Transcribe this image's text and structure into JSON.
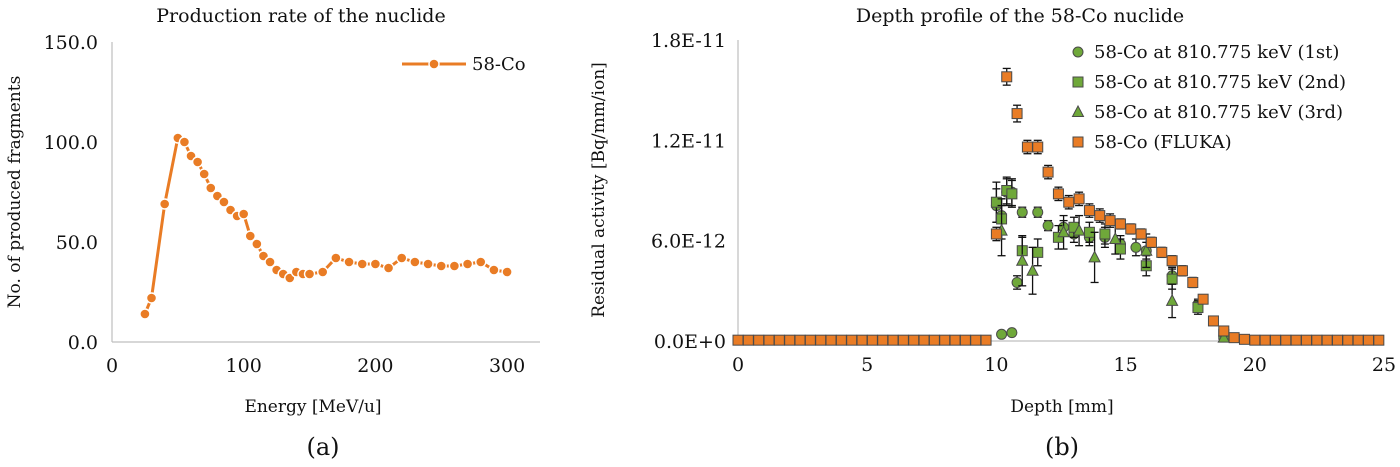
{
  "colors": {
    "orange": "#E97C25",
    "green": "#6FA83A",
    "dark": "#4a4a4a",
    "axis": "#bfbfbf"
  },
  "chart_data": [
    {
      "type": "line",
      "panel_label": "(a)",
      "title": "Production rate of the nuclide",
      "xlabel": "Energy [MeV/u]",
      "ylabel": "No. of produced fragments",
      "xlim": [
        0,
        325
      ],
      "ylim": [
        0,
        150
      ],
      "xticks": [
        "0",
        "100",
        "200",
        "300"
      ],
      "xtick_values": [
        0,
        100,
        200,
        300
      ],
      "yticks": [
        "0.0",
        "50.0",
        "100.0",
        "150.0"
      ],
      "ytick_values": [
        0,
        50,
        100,
        150
      ],
      "legend": "top-right",
      "series": [
        {
          "name": "58-Co",
          "color": "#E97C25",
          "x": [
            25,
            30,
            40,
            50,
            55,
            60,
            65,
            70,
            75,
            80,
            85,
            90,
            95,
            100,
            105,
            110,
            115,
            120,
            125,
            130,
            135,
            140,
            145,
            150,
            160,
            170,
            180,
            190,
            200,
            210,
            220,
            230,
            240,
            250,
            260,
            270,
            280,
            290,
            300
          ],
          "y": [
            14,
            22,
            69,
            102,
            100,
            93,
            90,
            84,
            77,
            73,
            70,
            66,
            63,
            64,
            53,
            49,
            43,
            40,
            36,
            34,
            32,
            35,
            34,
            34,
            35,
            42,
            40,
            39,
            39,
            37,
            42,
            40,
            39,
            38,
            38,
            39,
            40,
            36,
            35
          ]
        }
      ]
    },
    {
      "type": "scatter",
      "panel_label": "(b)",
      "title": "Depth profile of the 58-Co nuclide",
      "xlabel": "Depth [mm]",
      "ylabel": "Residual activity [Bq/mm/ion]",
      "xlim": [
        0,
        25
      ],
      "ylim": [
        0,
        1.8e-11
      ],
      "xticks": [
        "0",
        "5",
        "10",
        "15",
        "20",
        "25"
      ],
      "xtick_values": [
        0,
        5,
        10,
        15,
        20,
        25
      ],
      "yticks": [
        "0.0E+0",
        "6.0E-12",
        "1.2E-11",
        "1.8E-11"
      ],
      "ytick_values": [
        0,
        6e-12,
        1.2e-11,
        1.8e-11
      ],
      "legend": "top-right",
      "series": [
        {
          "name": "58-Co at 810.775 keV (1st)",
          "marker": "circle",
          "color": "#6FA83A",
          "points": [
            [
              10.0,
              8.1e-12,
              1e-12
            ],
            [
              10.2,
              7.5e-12,
              1e-12
            ],
            [
              10.4,
              8.9e-12,
              8e-13
            ],
            [
              10.6,
              8.9e-12,
              8e-13
            ],
            [
              10.8,
              3.5e-12,
              4e-13
            ],
            [
              11.0,
              7.7e-12,
              3e-13
            ],
            [
              11.6,
              7.7e-12,
              3e-13
            ],
            [
              12.0,
              6.9e-12,
              3e-13
            ],
            [
              12.6,
              6.8e-12,
              4e-13
            ],
            [
              13.0,
              6.4e-12,
              5e-13
            ],
            [
              13.6,
              6.2e-12,
              5e-13
            ],
            [
              14.2,
              6.2e-12,
              6e-13
            ],
            [
              14.8,
              5.8e-12,
              5e-13
            ],
            [
              15.4,
              5.6e-12,
              5e-13
            ],
            [
              15.8,
              5.4e-12,
              5e-13
            ],
            [
              16.8,
              3.9e-12,
              5e-13
            ],
            [
              17.8,
              2.2e-12,
              3e-13
            ],
            [
              18.8,
              3e-13,
              1e-13
            ],
            [
              10.2,
              4e-13,
              0
            ],
            [
              10.6,
              5e-13,
              0
            ]
          ]
        },
        {
          "name": "58-Co at 810.775 keV (2nd)",
          "marker": "square",
          "color": "#6FA83A",
          "points": [
            [
              10.0,
              8.3e-12,
              1.2e-12
            ],
            [
              10.2,
              7.3e-12,
              1.2e-12
            ],
            [
              10.4,
              9e-12,
              8e-13
            ],
            [
              10.6,
              8.8e-12,
              8e-13
            ],
            [
              11.0,
              5.4e-12,
              8e-13
            ],
            [
              11.6,
              5.3e-12,
              8e-13
            ],
            [
              12.4,
              6.2e-12,
              7e-13
            ],
            [
              13.0,
              6.8e-12,
              6e-13
            ],
            [
              13.6,
              6.5e-12,
              6e-13
            ],
            [
              14.2,
              6.4e-12,
              6e-13
            ],
            [
              14.8,
              5.5e-12,
              6e-13
            ],
            [
              15.8,
              4.5e-12,
              6e-13
            ],
            [
              16.8,
              3.7e-12,
              6e-13
            ],
            [
              17.8,
              2e-12,
              4e-13
            ],
            [
              18.8,
              4e-13,
              1e-13
            ]
          ]
        },
        {
          "name": "58-Co at 810.775 keV (3rd)",
          "marker": "triangle",
          "color": "#6FA83A",
          "points": [
            [
              10.2,
              6.6e-12,
              1.5e-12
            ],
            [
              11.0,
              4.8e-12,
              1.5e-12
            ],
            [
              11.4,
              4.2e-12,
              1.4e-12
            ],
            [
              12.6,
              6.5e-12,
              1e-12
            ],
            [
              13.2,
              6.6e-12,
              9e-13
            ],
            [
              13.8,
              5e-12,
              1.5e-12
            ],
            [
              14.6,
              6.1e-12,
              9e-13
            ],
            [
              15.8,
              5.4e-12,
              1e-12
            ],
            [
              16.8,
              2.4e-12,
              1e-12
            ],
            [
              18.8,
              2e-13,
              1e-13
            ]
          ]
        },
        {
          "name": "58-Co (FLUKA)",
          "marker": "square",
          "color": "#E97C25",
          "points": [
            [
              0.0,
              5e-14,
              0
            ],
            [
              0.4,
              5e-14,
              0
            ],
            [
              0.8,
              5e-14,
              0
            ],
            [
              1.2,
              5e-14,
              0
            ],
            [
              1.6,
              5e-14,
              0
            ],
            [
              2.0,
              5e-14,
              0
            ],
            [
              2.4,
              5e-14,
              0
            ],
            [
              2.8,
              5e-14,
              0
            ],
            [
              3.2,
              5e-14,
              0
            ],
            [
              3.6,
              5e-14,
              0
            ],
            [
              4.0,
              5e-14,
              0
            ],
            [
              4.4,
              5e-14,
              0
            ],
            [
              4.8,
              5e-14,
              0
            ],
            [
              5.2,
              5e-14,
              0
            ],
            [
              5.6,
              5e-14,
              0
            ],
            [
              6.0,
              5e-14,
              0
            ],
            [
              6.4,
              5e-14,
              0
            ],
            [
              6.8,
              5e-14,
              0
            ],
            [
              7.2,
              5e-14,
              0
            ],
            [
              7.6,
              5e-14,
              0
            ],
            [
              8.0,
              5e-14,
              0
            ],
            [
              8.4,
              5e-14,
              0
            ],
            [
              8.8,
              5e-14,
              0
            ],
            [
              9.2,
              5e-14,
              0
            ],
            [
              9.6,
              5e-14,
              0
            ],
            [
              10.0,
              6.4e-12,
              4e-13
            ],
            [
              10.4,
              1.58e-11,
              5e-13
            ],
            [
              10.8,
              1.36e-11,
              5e-13
            ],
            [
              11.2,
              1.16e-11,
              4e-13
            ],
            [
              11.6,
              1.16e-11,
              4e-13
            ],
            [
              12.0,
              1.01e-11,
              4e-13
            ],
            [
              12.4,
              8.8e-12,
              4e-13
            ],
            [
              12.8,
              8.3e-12,
              4e-13
            ],
            [
              13.2,
              8.5e-12,
              4e-13
            ],
            [
              13.6,
              7.8e-12,
              4e-13
            ],
            [
              14.0,
              7.5e-12,
              4e-13
            ],
            [
              14.4,
              7.2e-12,
              4e-13
            ],
            [
              14.8,
              7e-12,
              3e-13
            ],
            [
              15.2,
              6.7e-12,
              3e-13
            ],
            [
              15.6,
              6.4e-12,
              3e-13
            ],
            [
              16.0,
              5.9e-12,
              3e-13
            ],
            [
              16.4,
              5.3e-12,
              3e-13
            ],
            [
              16.8,
              4.8e-12,
              3e-13
            ],
            [
              17.2,
              4.2e-12,
              3e-13
            ],
            [
              17.6,
              3.5e-12,
              3e-13
            ],
            [
              18.0,
              2.5e-12,
              2e-13
            ],
            [
              18.4,
              1.2e-12,
              2e-13
            ],
            [
              18.8,
              6e-13,
              1e-13
            ],
            [
              19.2,
              2e-13,
              0
            ],
            [
              19.6,
              1e-13,
              0
            ],
            [
              20.0,
              5e-14,
              0
            ],
            [
              20.4,
              5e-14,
              0
            ],
            [
              20.8,
              5e-14,
              0
            ],
            [
              21.2,
              5e-14,
              0
            ],
            [
              21.6,
              5e-14,
              0
            ],
            [
              22.0,
              5e-14,
              0
            ],
            [
              22.4,
              5e-14,
              0
            ],
            [
              22.8,
              5e-14,
              0
            ],
            [
              23.2,
              5e-14,
              0
            ],
            [
              23.6,
              5e-14,
              0
            ],
            [
              24.0,
              5e-14,
              0
            ],
            [
              24.4,
              5e-14,
              0
            ],
            [
              24.8,
              5e-14,
              0
            ]
          ]
        }
      ]
    }
  ]
}
